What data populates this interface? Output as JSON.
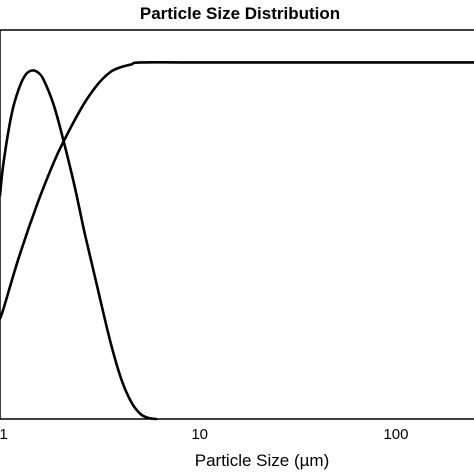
{
  "chart_data": {
    "type": "line",
    "title": "Particle Size Distribution",
    "xlabel": "Particle Size (µm)",
    "ylabel": "",
    "xscale": "log",
    "xlim": [
      0.96,
      250
    ],
    "ylim": [
      0,
      1.2
    ],
    "x_ticks": [
      {
        "value": 1,
        "label": "1"
      },
      {
        "value": 10,
        "label": "10"
      },
      {
        "value": 100,
        "label": "100"
      }
    ],
    "grid": false,
    "legend": "none",
    "line_color": "#000000",
    "series": [
      {
        "x": [
          0.96,
          1.0,
          1.1,
          1.2,
          1.3,
          1.4,
          1.5,
          1.6,
          1.8,
          2.0,
          2.3,
          2.6,
          3.0,
          3.5,
          4.0,
          4.5,
          5.0,
          5.5,
          6.0
        ],
        "values": [
          0.69,
          0.79,
          0.94,
          1.02,
          1.063,
          1.075,
          1.069,
          1.047,
          0.97,
          0.87,
          0.72,
          0.57,
          0.41,
          0.24,
          0.12,
          0.05,
          0.015,
          0.003,
          0.0
        ]
      },
      {
        "x": [
          0.96,
          1.0,
          1.2,
          1.5,
          1.8,
          2.0,
          2.5,
          3.0,
          3.5,
          4.0,
          4.5,
          5.0,
          10,
          100,
          250
        ],
        "values": [
          0.31,
          0.34,
          0.5,
          0.67,
          0.79,
          0.85,
          0.96,
          1.03,
          1.07,
          1.086,
          1.094,
          1.1,
          1.1,
          1.1,
          1.1
        ]
      }
    ]
  }
}
